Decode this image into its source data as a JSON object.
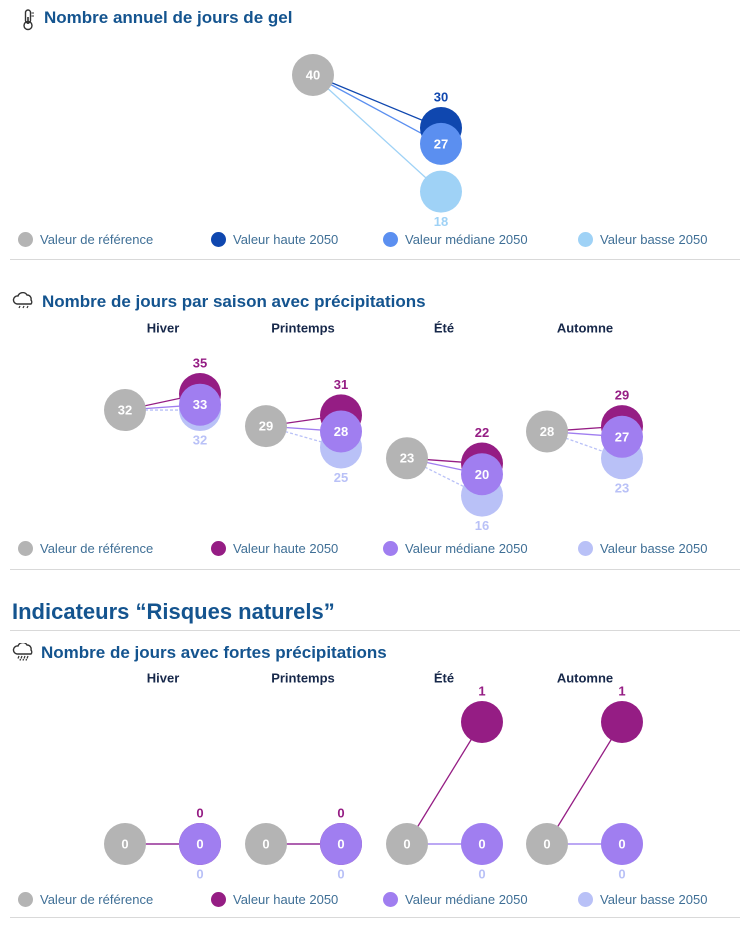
{
  "colors": {
    "reference": "#b4b4b4",
    "gel_high": "#0f47af",
    "gel_median": "#5b8ff0",
    "gel_low": "#9fd2f6",
    "prec_high": "#951d84",
    "prec_median": "#a07ef0",
    "prec_low": "#b9c1f7",
    "title": "#14548f"
  },
  "sections": [
    {
      "id": "gel",
      "title": "Nombre annuel de jours de gel",
      "icon": "thermometer-icon",
      "legend": [
        "Valeur de référence",
        "Valeur haute 2050",
        "Valeur médiane 2050",
        "Valeur basse 2050"
      ]
    },
    {
      "id": "precip",
      "title": "Nombre de jours par saison avec précipitations",
      "icon": "rain-cloud-icon",
      "legend": [
        "Valeur de référence",
        "Valeur haute 2050",
        "Valeur médiane 2050",
        "Valeur basse 2050"
      ]
    },
    {
      "id": "fortes",
      "title": "Nombre de jours avec fortes précipitations",
      "icon": "heavy-rain-cloud-icon",
      "legend": [
        "Valeur de référence",
        "Valeur haute 2050",
        "Valeur médiane 2050",
        "Valeur basse 2050"
      ]
    }
  ],
  "heading_risques": "Indicateurs “Risques naturels”",
  "chart_data": [
    {
      "type": "scatter",
      "title": "Nombre annuel de jours de gel",
      "series": [
        {
          "name": "Valeur de référence",
          "values": [
            40
          ]
        },
        {
          "name": "Valeur haute 2050",
          "values": [
            30
          ]
        },
        {
          "name": "Valeur médiane 2050",
          "values": [
            27
          ]
        },
        {
          "name": "Valeur basse 2050",
          "values": [
            18
          ]
        }
      ]
    },
    {
      "type": "scatter",
      "title": "Nombre de jours par saison avec précipitations",
      "categories": [
        "Hiver",
        "Printemps",
        "Été",
        "Automne"
      ],
      "series": [
        {
          "name": "Valeur de référence",
          "values": [
            32,
            29,
            23,
            28
          ]
        },
        {
          "name": "Valeur haute 2050",
          "values": [
            35,
            31,
            22,
            29
          ]
        },
        {
          "name": "Valeur médiane 2050",
          "values": [
            33,
            28,
            20,
            27
          ]
        },
        {
          "name": "Valeur basse 2050",
          "values": [
            32,
            25,
            16,
            23
          ]
        }
      ]
    },
    {
      "type": "scatter",
      "title": "Nombre de jours avec fortes précipitations",
      "categories": [
        "Hiver",
        "Printemps",
        "Été",
        "Automne"
      ],
      "series": [
        {
          "name": "Valeur de référence",
          "values": [
            0,
            0,
            0,
            0
          ]
        },
        {
          "name": "Valeur haute 2050",
          "values": [
            0,
            0,
            1,
            1
          ]
        },
        {
          "name": "Valeur médiane 2050",
          "values": [
            0,
            0,
            0,
            0
          ]
        },
        {
          "name": "Valeur basse 2050",
          "values": [
            0,
            0,
            0,
            0
          ]
        }
      ]
    }
  ]
}
